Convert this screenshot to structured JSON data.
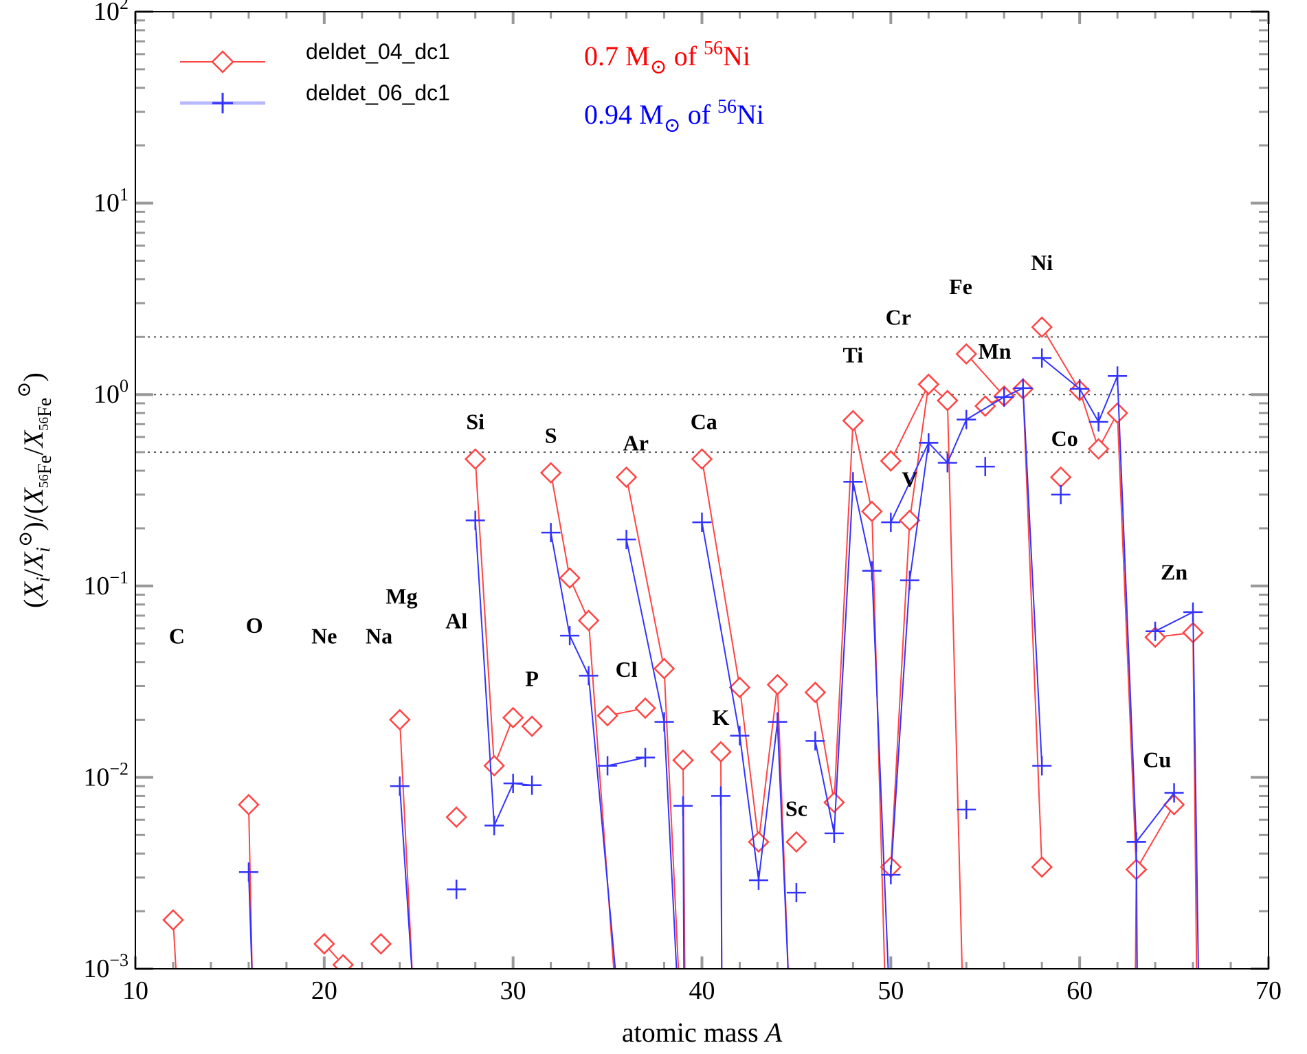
{
  "chart_data": {
    "type": "line",
    "xlabel": "atomic mass A",
    "ylabel": "(X_i / X_i^⊙) / (X_56Fe / X_56Fe^⊙)",
    "xlim": [
      10,
      70
    ],
    "ylim": [
      0.001,
      100
    ],
    "yscale": "log",
    "x_ticks": [
      10,
      20,
      30,
      40,
      50,
      60,
      70
    ],
    "y_ticks": [
      {
        "value": 0.001,
        "base": "10",
        "exp": "−3"
      },
      {
        "value": 0.01,
        "base": "10",
        "exp": "−2"
      },
      {
        "value": 0.1,
        "base": "10",
        "exp": "−1"
      },
      {
        "value": 1,
        "base": "10",
        "exp": "0"
      },
      {
        "value": 10,
        "base": "10",
        "exp": "1"
      },
      {
        "value": 100,
        "base": "10",
        "exp": "2"
      }
    ],
    "reference_lines": [
      0.5,
      1,
      2
    ],
    "legend_position": "top-left",
    "series": [
      {
        "name": "deldet_04_dc1",
        "color": "#ff4444",
        "marker": "diamond",
        "segments": [
          [
            [
              12,
              0.0018
            ],
            [
              12.2,
              0.0008
            ]
          ],
          [
            [
              16,
              0.0072
            ],
            [
              16.2,
              0.0008
            ]
          ],
          [
            [
              20,
              0.00135
            ],
            [
              21,
              0.00105
            ]
          ],
          [
            [
              23,
              0.00135
            ]
          ],
          [
            [
              24,
              0.02
            ],
            [
              24.7,
              0.0008
            ]
          ],
          [
            [
              27,
              0.0062
            ]
          ],
          [
            [
              28,
              0.46
            ],
            [
              29,
              0.0115
            ],
            [
              30,
              0.0205
            ]
          ],
          [
            [
              31,
              0.0185
            ]
          ],
          [
            [
              32,
              0.39
            ],
            [
              33,
              0.11
            ],
            [
              34,
              0.066
            ],
            [
              35.4,
              0.0008
            ]
          ],
          [
            [
              35,
              0.021
            ],
            [
              37,
              0.023
            ]
          ],
          [
            [
              36,
              0.37
            ],
            [
              38,
              0.037
            ],
            [
              38.8,
              0.0008
            ]
          ],
          [
            [
              39,
              0.0123
            ],
            [
              39.1,
              0.0008
            ]
          ],
          [
            [
              40,
              0.46
            ],
            [
              42,
              0.0295
            ],
            [
              43,
              0.0046
            ],
            [
              44,
              0.0305
            ],
            [
              44.6,
              0.0008
            ]
          ],
          [
            [
              41,
              0.0136
            ],
            [
              41.05,
              0.0008
            ]
          ],
          [
            [
              45,
              0.0046
            ]
          ],
          [
            [
              46,
              0.0278
            ],
            [
              47,
              0.0074
            ],
            [
              48,
              0.73
            ],
            [
              49,
              0.245
            ],
            [
              49.7,
              0.0008
            ]
          ],
          [
            [
              50,
              0.0034
            ],
            [
              51,
              0.22
            ],
            [
              52,
              1.13
            ],
            [
              53,
              0.93
            ],
            [
              53.8,
              0.0008
            ]
          ],
          [
            [
              50,
              0.45
            ],
            [
              52,
              1.13
            ]
          ],
          [
            [
              54,
              1.63
            ],
            [
              56,
              0.98
            ],
            [
              57,
              1.07
            ],
            [
              58,
              0.0034
            ]
          ],
          [
            [
              55,
              0.87
            ],
            [
              56,
              0.98
            ]
          ],
          [
            [
              58,
              2.25
            ],
            [
              60,
              1.05
            ],
            [
              61,
              0.52
            ],
            [
              62,
              0.8
            ],
            [
              63,
              0.0033
            ],
            [
              62.95,
              0.0008
            ]
          ],
          [
            [
              59,
              0.37
            ]
          ],
          [
            [
              63,
              0.0033
            ],
            [
              65,
              0.0072
            ]
          ],
          [
            [
              64,
              0.054
            ],
            [
              66,
              0.057
            ],
            [
              66.2,
              0.0008
            ]
          ]
        ]
      },
      {
        "name": "deldet_06_dc1",
        "color": "#3333ff",
        "marker": "plus",
        "segments": [
          [
            [
              16,
              0.0032
            ],
            [
              16.2,
              0.0008
            ]
          ],
          [
            [
              24,
              0.009
            ],
            [
              24.7,
              0.0008
            ]
          ],
          [
            [
              27,
              0.0026
            ]
          ],
          [
            [
              28,
              0.22
            ],
            [
              29,
              0.0056
            ],
            [
              30,
              0.0093
            ],
            [
              31,
              0.0091
            ]
          ],
          [
            [
              32,
              0.19
            ],
            [
              33,
              0.055
            ],
            [
              34,
              0.034
            ],
            [
              35.5,
              0.0008
            ]
          ],
          [
            [
              35,
              0.0115
            ],
            [
              37,
              0.0127
            ]
          ],
          [
            [
              36,
              0.175
            ],
            [
              38,
              0.0195
            ],
            [
              38.7,
              0.0008
            ]
          ],
          [
            [
              39,
              0.0071
            ],
            [
              39.05,
              0.0008
            ]
          ],
          [
            [
              40,
              0.215
            ],
            [
              42,
              0.0165
            ],
            [
              43,
              0.0029
            ],
            [
              44,
              0.0195
            ],
            [
              44.6,
              0.0008
            ]
          ],
          [
            [
              41,
              0.008
            ],
            [
              41.05,
              0.0008
            ]
          ],
          [
            [
              45,
              0.0025
            ]
          ],
          [
            [
              46,
              0.0155
            ],
            [
              47,
              0.0051
            ],
            [
              48,
              0.35
            ],
            [
              49,
              0.12
            ],
            [
              49.9,
              0.0008
            ]
          ],
          [
            [
              50,
              0.0031
            ],
            [
              51,
              0.107
            ],
            [
              52,
              0.56
            ],
            [
              53,
              0.44
            ],
            [
              54,
              0.74
            ],
            [
              56,
              0.97
            ],
            [
              57,
              1.08
            ],
            [
              58,
              0.0115
            ]
          ],
          [
            [
              50,
              0.215
            ],
            [
              52,
              0.56
            ]
          ],
          [
            [
              54,
              0.0068
            ]
          ],
          [
            [
              55,
              0.42
            ]
          ],
          [
            [
              58,
              1.55
            ],
            [
              60,
              1.07
            ],
            [
              61,
              0.72
            ],
            [
              62,
              1.25
            ],
            [
              63,
              0.0046
            ],
            [
              63.05,
              0.0008
            ]
          ],
          [
            [
              59,
              0.3
            ]
          ],
          [
            [
              63,
              0.0046
            ],
            [
              65,
              0.0083
            ]
          ],
          [
            [
              64,
              0.058
            ],
            [
              66,
              0.073
            ],
            [
              66.3,
              0.0008
            ]
          ]
        ]
      }
    ],
    "element_labels": [
      {
        "text": "C",
        "x": 12.2,
        "y": 0.05
      },
      {
        "text": "O",
        "x": 16.3,
        "y": 0.057
      },
      {
        "text": "Ne",
        "x": 20.0,
        "y": 0.05
      },
      {
        "text": "Na",
        "x": 22.9,
        "y": 0.05
      },
      {
        "text": "Mg",
        "x": 24.1,
        "y": 0.081
      },
      {
        "text": "Al",
        "x": 27.0,
        "y": 0.06
      },
      {
        "text": "Si",
        "x": 28.0,
        "y": 0.66
      },
      {
        "text": "P",
        "x": 31.0,
        "y": 0.03
      },
      {
        "text": "S",
        "x": 32.0,
        "y": 0.56
      },
      {
        "text": "Cl",
        "x": 36.0,
        "y": 0.0335
      },
      {
        "text": "Ar",
        "x": 36.5,
        "y": 0.51
      },
      {
        "text": "Ca",
        "x": 40.1,
        "y": 0.66
      },
      {
        "text": "K",
        "x": 41.0,
        "y": 0.0188
      },
      {
        "text": "Sc",
        "x": 45.0,
        "y": 0.0063
      },
      {
        "text": "Ti",
        "x": 48.0,
        "y": 1.47
      },
      {
        "text": "Cr",
        "x": 50.4,
        "y": 2.32
      },
      {
        "text": "V",
        "x": 51.0,
        "y": 0.33
      },
      {
        "text": "Fe",
        "x": 53.7,
        "y": 3.35
      },
      {
        "text": "Mn",
        "x": 55.5,
        "y": 1.54
      },
      {
        "text": "Ni",
        "x": 58.0,
        "y": 4.47
      },
      {
        "text": "Co",
        "x": 59.2,
        "y": 0.54
      },
      {
        "text": "Cu",
        "x": 64.1,
        "y": 0.0113
      },
      {
        "text": "Zn",
        "x": 65.0,
        "y": 0.108
      }
    ],
    "annotations": [
      {
        "pre": "0.7 M",
        "sub": "⊙",
        "mid": " of ",
        "sup": "56",
        "post": "Ni",
        "color": "#ff0000"
      },
      {
        "pre": "0.94 M",
        "sub": "⊙",
        "mid": " of ",
        "sup": "56",
        "post": "Ni",
        "color": "#0000ff"
      }
    ]
  }
}
